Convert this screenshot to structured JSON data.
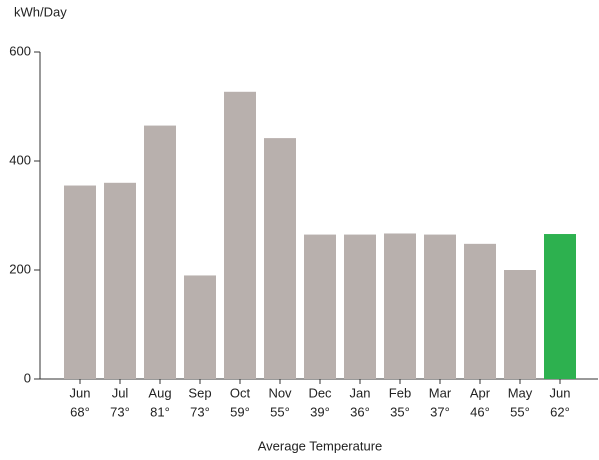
{
  "chart_data": {
    "type": "bar",
    "y_label": "kWh/Day",
    "x_label": "Average Temperature",
    "categories": [
      "Jun",
      "Jul",
      "Aug",
      "Sep",
      "Oct",
      "Nov",
      "Dec",
      "Jan",
      "Feb",
      "Mar",
      "Apr",
      "May",
      "Jun"
    ],
    "temperatures": [
      "68°",
      "73°",
      "81°",
      "73°",
      "59°",
      "55°",
      "39°",
      "36°",
      "35°",
      "37°",
      "46°",
      "55°",
      "62°"
    ],
    "values": [
      355,
      360,
      465,
      190,
      527,
      442,
      265,
      265,
      267,
      265,
      248,
      200,
      266
    ],
    "colors": [
      "#b8b0ad",
      "#b8b0ad",
      "#b8b0ad",
      "#b8b0ad",
      "#b8b0ad",
      "#b8b0ad",
      "#b8b0ad",
      "#b8b0ad",
      "#b8b0ad",
      "#b8b0ad",
      "#b8b0ad",
      "#b8b0ad",
      "#2db14f"
    ],
    "ylim": [
      0,
      600
    ],
    "yticks": [
      0,
      200,
      400,
      600
    ],
    "grid": false
  }
}
